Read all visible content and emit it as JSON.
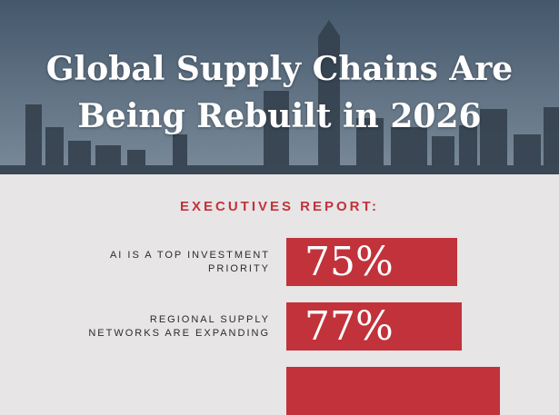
{
  "chart_data": {
    "type": "bar",
    "title": "Global Supply Chains Are\nBeing Rebuilt in 2026",
    "subtitle": "EXECUTIVES REPORT:",
    "categories": [
      "AI IS A TOP INVESTMENT\nPRIORITY",
      "REGIONAL SUPPLY\nNETWORKS ARE EXPANDING",
      null
    ],
    "values": [
      75,
      77,
      94
    ],
    "value_labels": [
      "75%",
      "77%",
      null
    ],
    "color": "#c2323b"
  }
}
